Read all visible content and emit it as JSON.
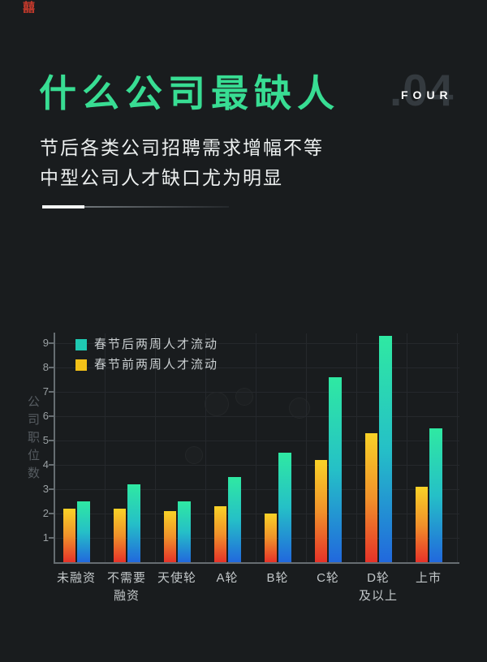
{
  "page": {
    "background_color": "#191c1e"
  },
  "header": {
    "stamp": "囍",
    "title": "什么公司最缺人",
    "title_color": "#38dd93",
    "section_index_number": ".04",
    "section_index_word": "FOUR",
    "subtitle_line1": "节后各类公司招聘需求增幅不等",
    "subtitle_line2": "中型公司人才缺口尤为明显"
  },
  "chart_data": {
    "type": "bar",
    "title": "",
    "xlabel": "",
    "ylabel": "公司职位数",
    "ylim": [
      0,
      9.6
    ],
    "yticks": [
      1,
      2,
      3,
      4,
      5,
      6,
      7,
      8,
      9
    ],
    "grid": true,
    "legend_position": "top-left",
    "categories": [
      "未融资",
      "不需要融资",
      "天使轮",
      "A轮",
      "B轮",
      "C轮",
      "D轮及以上",
      "上市"
    ],
    "category_label_lines": [
      [
        "未融资"
      ],
      [
        "不需要",
        "融资"
      ],
      [
        "天使轮"
      ],
      [
        "A轮"
      ],
      [
        "B轮"
      ],
      [
        "C轮"
      ],
      [
        "D轮",
        "及以上"
      ],
      [
        "上市"
      ]
    ],
    "series": [
      {
        "name": "春节后两周人才流动",
        "legend_color": "#1fc9b2",
        "gradient": [
          "#2fe9a2",
          "#25c0c7",
          "#2168dd"
        ],
        "side": "right",
        "values": [
          2.5,
          3.2,
          2.5,
          3.5,
          4.5,
          7.6,
          9.3,
          5.5
        ]
      },
      {
        "name": "春节前两周人才流动",
        "legend_color": "#f2c118",
        "gradient": [
          "#f9d227",
          "#f0922a",
          "#e63229"
        ],
        "side": "left",
        "values": [
          2.2,
          2.2,
          2.1,
          2.3,
          2.0,
          4.2,
          5.3,
          3.1
        ]
      }
    ]
  }
}
